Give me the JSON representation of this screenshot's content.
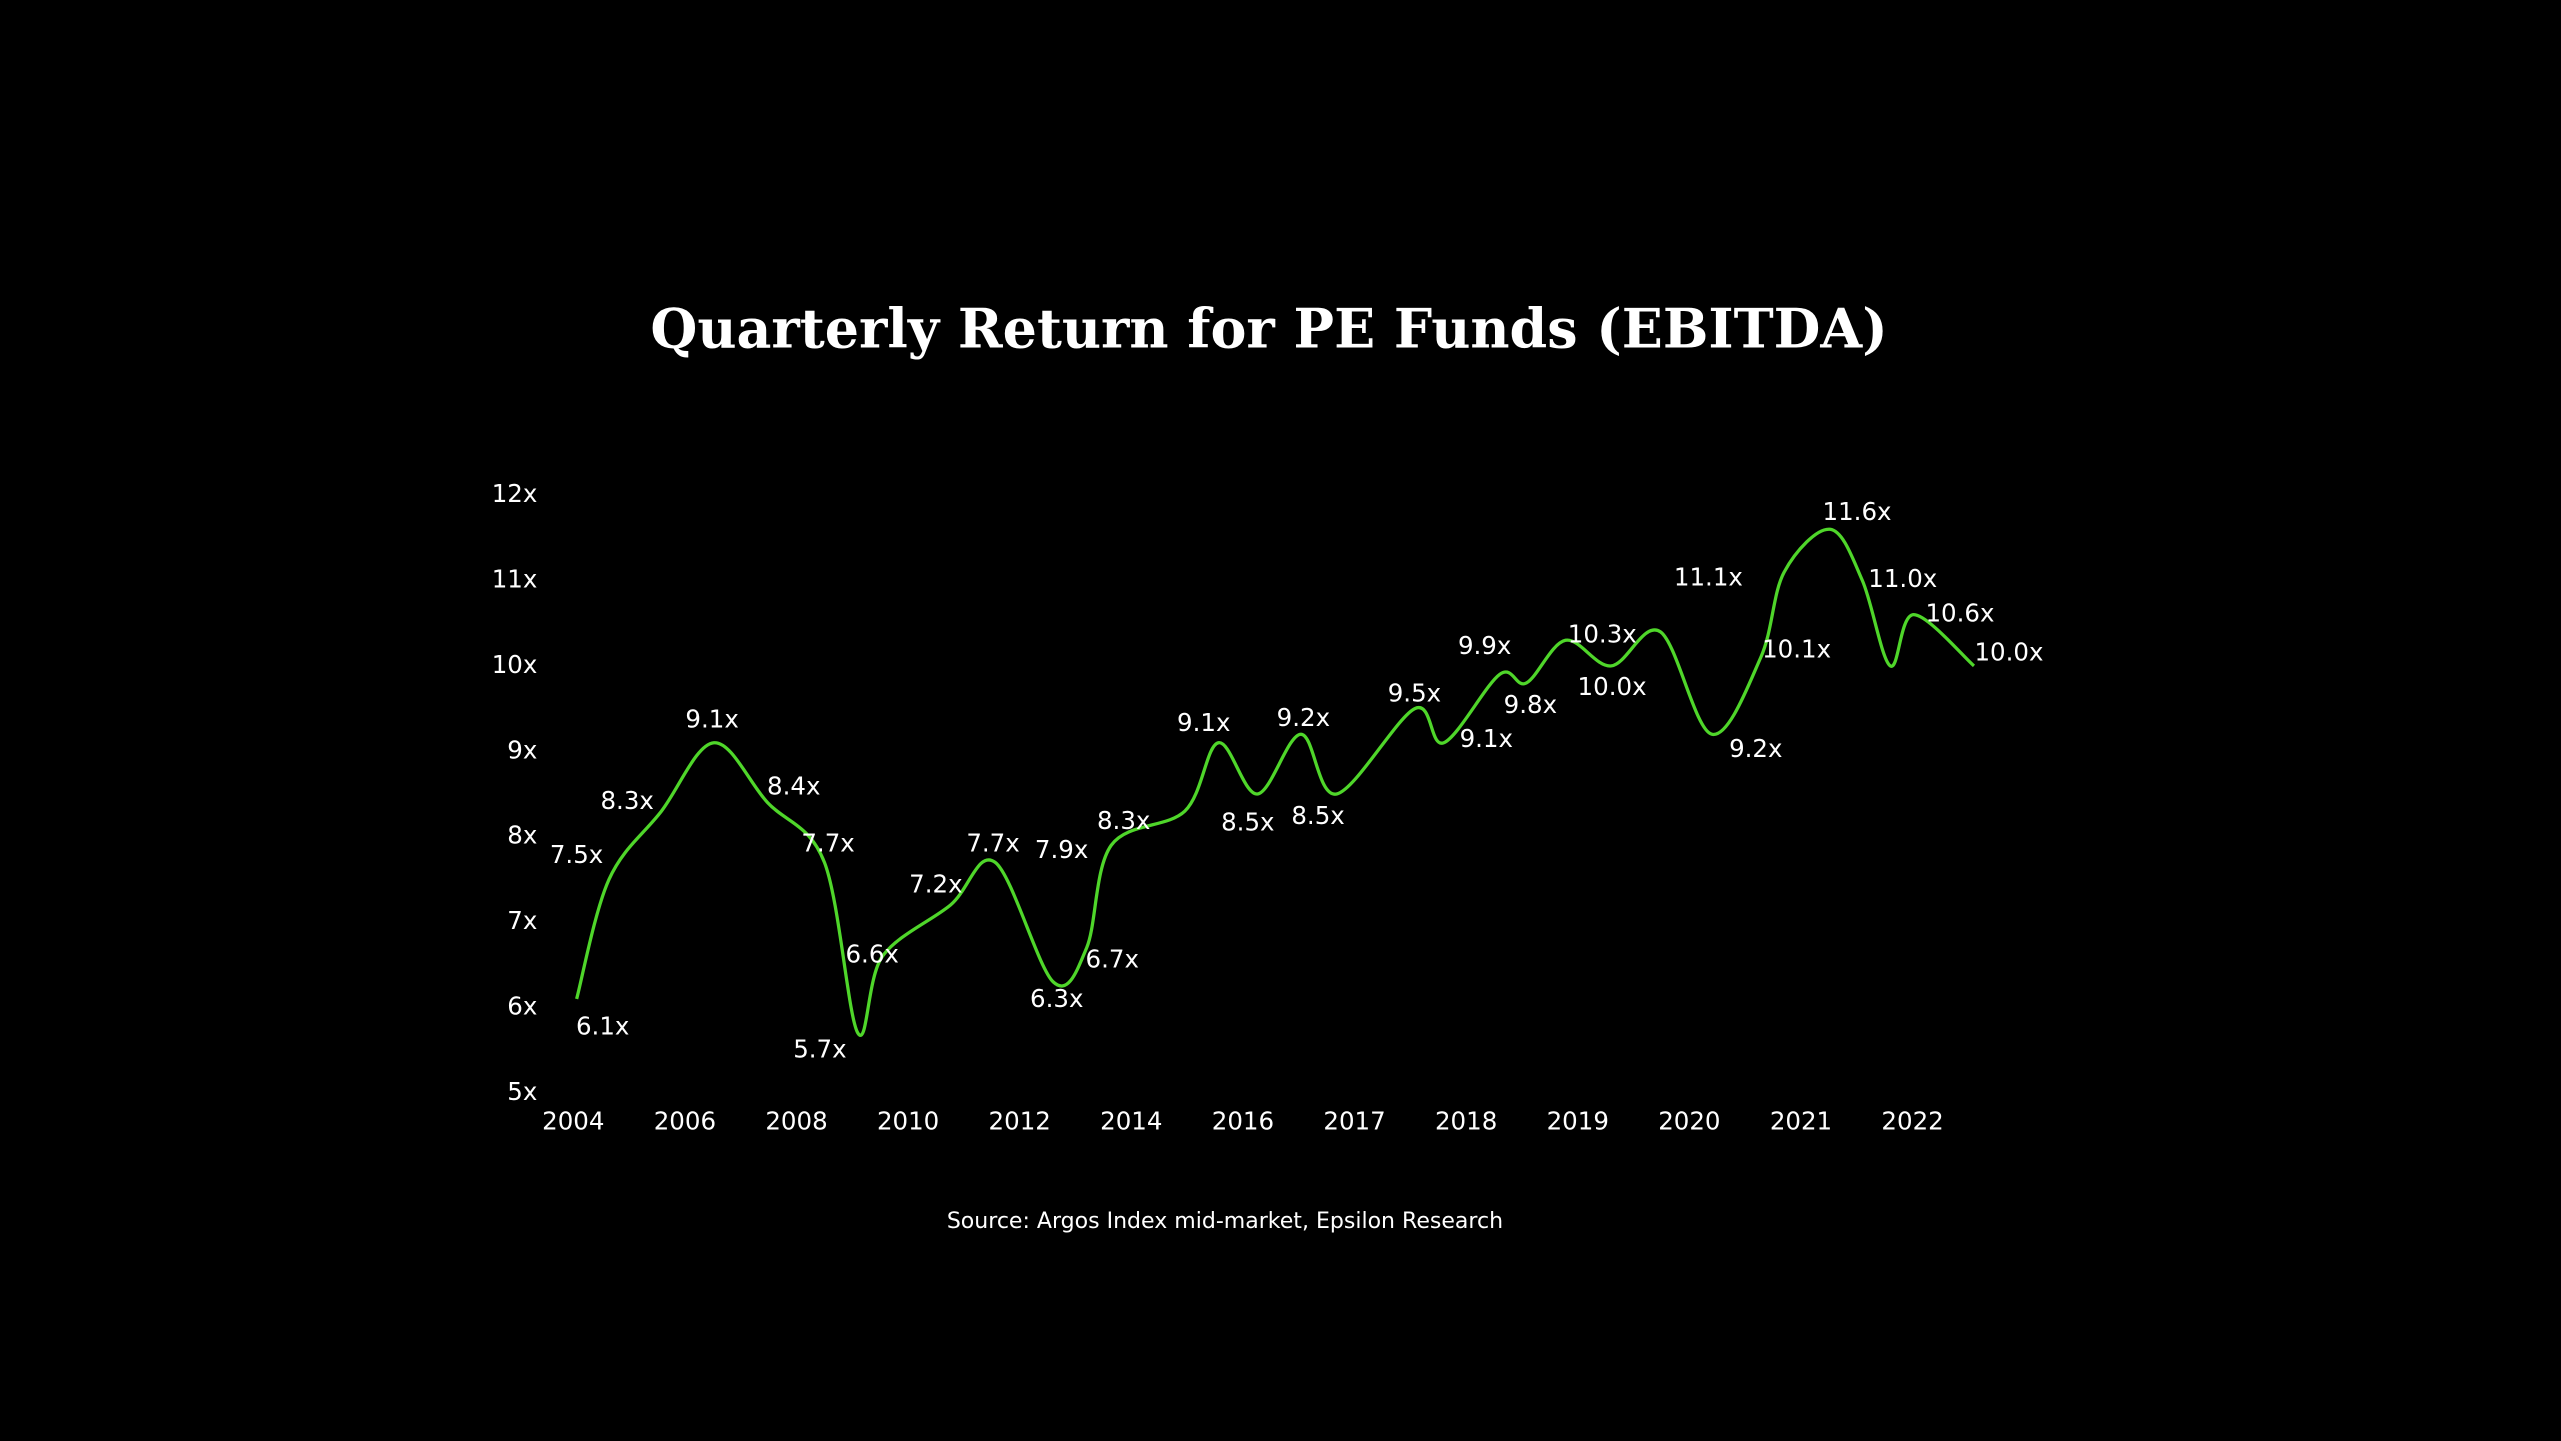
{
  "chart_data": {
    "type": "line",
    "title": "Quarterly Return for PE Funds (EBITDA)",
    "source": "Source: Argos Index mid-market, Epsilon Research",
    "xlim": [
      0,
      12
    ],
    "xticks": [
      {
        "value": 0,
        "label": "2004"
      },
      {
        "value": 1,
        "label": "2006"
      },
      {
        "value": 2,
        "label": "2008"
      },
      {
        "value": 3,
        "label": "2010"
      },
      {
        "value": 4,
        "label": "2012"
      },
      {
        "value": 5,
        "label": "2014"
      },
      {
        "value": 6,
        "label": "2016"
      },
      {
        "value": 7,
        "label": "2017"
      },
      {
        "value": 8,
        "label": "2018"
      },
      {
        "value": 9,
        "label": "2019"
      },
      {
        "value": 10,
        "label": "2020"
      },
      {
        "value": 11,
        "label": "2021"
      },
      {
        "value": 12,
        "label": "2022"
      }
    ],
    "ylim": [
      5,
      12
    ],
    "yticks": [
      {
        "value": 5,
        "label": "5x"
      },
      {
        "value": 6,
        "label": "6x"
      },
      {
        "value": 7,
        "label": "7x"
      },
      {
        "value": 8,
        "label": "8x"
      },
      {
        "value": 9,
        "label": "9x"
      },
      {
        "value": 10,
        "label": "10x"
      },
      {
        "value": 11,
        "label": "11x"
      },
      {
        "value": 12,
        "label": "12x"
      }
    ],
    "series": [
      {
        "color": "#4fd62a",
        "x": [
          0.03,
          0.32,
          0.79,
          1.26,
          1.74,
          2.25,
          2.55,
          2.77,
          3.38,
          3.78,
          4.3,
          4.6,
          4.82,
          5.48,
          5.78,
          6.13,
          6.52,
          6.84,
          7.54,
          7.8,
          8.3,
          8.54,
          8.89,
          9.3,
          9.74,
          10.2,
          10.64,
          10.85,
          11.26,
          11.55,
          11.8,
          12.01,
          12.55
        ],
        "values": [
          6.1,
          7.5,
          8.3,
          9.1,
          8.4,
          7.7,
          5.7,
          6.6,
          7.2,
          7.7,
          6.3,
          6.7,
          7.9,
          8.3,
          9.1,
          8.5,
          9.2,
          8.5,
          9.5,
          9.1,
          9.9,
          9.8,
          10.3,
          10.0,
          10.4,
          9.2,
          10.1,
          11.1,
          11.6,
          11.0,
          10.0,
          10.6,
          10.0
        ],
        "value_labels": [
          "6.1x",
          "7.5x",
          "8.3x",
          "9.1x",
          "8.4x",
          "7.7x",
          "5.7x",
          "6.6x",
          "7.2x",
          "7.7x",
          "6.3x",
          "6.7x",
          "7.9x",
          "8.3x",
          "9.1x",
          "8.5x",
          "9.2x",
          "8.5x",
          "9.5x",
          "9.1x",
          "9.9x",
          "9.8x",
          "10.3x",
          "10.0x",
          null,
          "9.2x",
          "10.1x",
          "11.1x",
          "11.6x",
          "11.0x",
          null,
          "10.6x",
          "10.0x"
        ]
      }
    ]
  }
}
